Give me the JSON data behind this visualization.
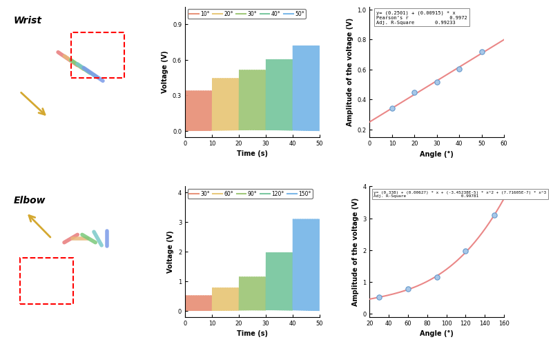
{
  "wrist": {
    "title": "Wrist",
    "bg_color": "#cce8f4",
    "angles": [
      10,
      20,
      30,
      40,
      50
    ],
    "amplitudes": [
      0.34,
      0.445,
      0.515,
      0.605,
      0.72
    ],
    "fit_label": "y= (0.2501) + (0.00915) * x",
    "pearson_r": "0.9972",
    "adj_r2": "0.99233",
    "time_colors": [
      "#e8937a",
      "#e8c87a",
      "#a0c87a",
      "#7ac8a0",
      "#7ab8e8"
    ],
    "legend_angles": [
      "10°",
      "20°",
      "30°",
      "40°",
      "50°"
    ],
    "time_xlim": [
      0,
      50
    ],
    "time_ylim": [
      -0.05,
      1.05
    ],
    "time_yticks": [
      0.0,
      0.3,
      0.6,
      0.9
    ],
    "scatter_xlim": [
      0,
      60
    ],
    "scatter_ylim": [
      0.15,
      1.02
    ],
    "scatter_yticks": [
      0.2,
      0.4,
      0.6,
      0.8,
      1.0
    ],
    "scatter_xticks": [
      0,
      10,
      20,
      30,
      40,
      50,
      60
    ]
  },
  "elbow": {
    "title": "Elbow",
    "bg_color": "#fce8e0",
    "angles": [
      30,
      60,
      90,
      120,
      150
    ],
    "amplitudes": [
      0.52,
      0.78,
      1.15,
      1.97,
      3.1
    ],
    "fit_label": "y= (0.338) + (0.00627) * x + (-3.45238E-5) * x^2 + (7.71605E-7) * x^3",
    "adj_r2": "0.99781",
    "time_colors": [
      "#e8937a",
      "#e8c87a",
      "#a0c87a",
      "#7ac8a0",
      "#7ab8e8"
    ],
    "legend_angles": [
      "30°",
      "60°",
      "90°",
      "120°",
      "150°"
    ],
    "time_xlim": [
      0,
      50
    ],
    "time_ylim": [
      -0.2,
      4.2
    ],
    "time_yticks": [
      0,
      1,
      2,
      3,
      4
    ],
    "scatter_xlim": [
      20,
      160
    ],
    "scatter_ylim": [
      -0.1,
      4.0
    ],
    "scatter_yticks": [
      0,
      1,
      2,
      3,
      4
    ],
    "scatter_xticks": [
      20,
      40,
      60,
      80,
      100,
      120,
      140,
      160
    ]
  }
}
